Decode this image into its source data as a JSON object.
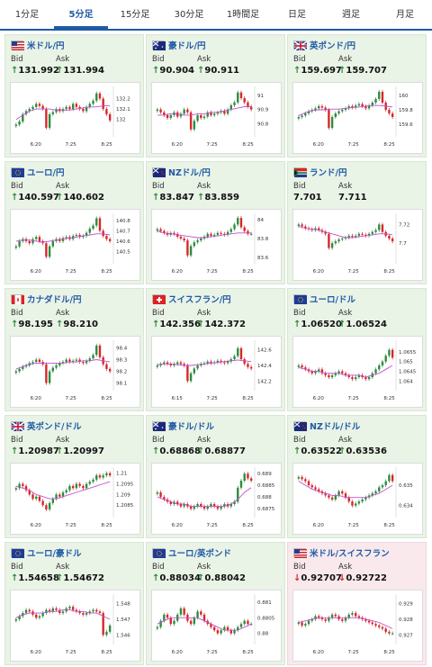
{
  "tabs": [
    "1分足",
    "5分足",
    "15分足",
    "30分足",
    "1時間足",
    "日足",
    "週足",
    "月足"
  ],
  "active_tab": 1,
  "labels": {
    "bid": "Bid",
    "ask": "Ask"
  },
  "colors": {
    "up": "#2e8b3e",
    "down": "#d62728",
    "accent": "#1f5aa6",
    "ma": "#c34fd0"
  },
  "cards": [
    {
      "pair": "米ドル/円",
      "flag": "us",
      "dir": "up",
      "bid": "131.992",
      "ask": "131.994",
      "yticks": [
        "132.2",
        "132.1",
        "132"
      ],
      "xticks": [
        "6:20",
        "7:25",
        "8:25"
      ],
      "yrange": [
        131.85,
        132.3
      ],
      "closes": [
        131.95,
        131.98,
        132.05,
        132.08,
        132.1,
        132.12,
        132.15,
        132.13,
        132.1,
        131.92,
        132.05,
        132.07,
        132.1,
        132.08,
        132.1,
        132.12,
        132.1,
        132.15,
        132.12,
        132.1,
        132.08,
        132.12,
        132.15,
        132.18,
        132.25,
        132.2,
        132.1,
        132.05,
        131.99
      ],
      "ma": [
        132.0,
        132.04,
        132.08,
        132.1,
        132.1,
        132.1,
        132.09,
        132.09,
        132.09,
        132.1,
        132.11,
        132.12,
        132.12,
        132.13,
        132.13
      ]
    },
    {
      "pair": "豪ドル/円",
      "flag": "au",
      "dir": "up",
      "bid": "90.904",
      "ask": "90.911",
      "yticks": [
        "91",
        "90.9",
        "90.8"
      ],
      "xticks": [
        "6:20",
        "7:25",
        "8:25"
      ],
      "yrange": [
        90.72,
        91.05
      ],
      "closes": [
        90.9,
        90.88,
        90.86,
        90.84,
        90.86,
        90.88,
        90.85,
        90.87,
        90.9,
        90.88,
        90.76,
        90.82,
        90.86,
        90.84,
        90.85,
        90.88,
        90.86,
        90.87,
        90.88,
        90.89,
        90.87,
        90.9,
        90.93,
        90.95,
        91.02,
        90.98,
        90.95,
        90.92,
        90.9
      ],
      "ma": [
        90.86,
        90.86,
        90.87,
        90.87,
        90.86,
        90.86,
        90.87,
        90.87,
        90.88,
        90.88,
        90.89,
        90.9,
        90.91,
        90.92,
        90.92
      ]
    },
    {
      "pair": "英ポンド/円",
      "flag": "gb",
      "dir": "up",
      "bid": "159.697",
      "ask": "159.707",
      "yticks": [
        "160",
        "159.8",
        "159.6"
      ],
      "xticks": [
        "6:20",
        "7:25",
        "8:25"
      ],
      "yrange": [
        159.45,
        160.1
      ],
      "closes": [
        159.7,
        159.72,
        159.75,
        159.78,
        159.8,
        159.82,
        159.85,
        159.83,
        159.8,
        159.55,
        159.7,
        159.75,
        159.78,
        159.8,
        159.82,
        159.85,
        159.83,
        159.86,
        159.88,
        159.85,
        159.82,
        159.86,
        159.9,
        159.95,
        160.05,
        159.9,
        159.8,
        159.75,
        159.7
      ],
      "ma": [
        159.72,
        159.76,
        159.79,
        159.8,
        159.8,
        159.81,
        159.81,
        159.82,
        159.83,
        159.84,
        159.85,
        159.86,
        159.86,
        159.85,
        159.84
      ]
    },
    {
      "pair": "ユーロ/円",
      "flag": "eu",
      "dir": "up",
      "bid": "140.597",
      "ask": "140.602",
      "yticks": [
        "140.8",
        "140.7",
        "140.6",
        "140.5"
      ],
      "xticks": [
        "6:20",
        "7:25",
        "8:25"
      ],
      "yrange": [
        140.4,
        140.85
      ],
      "closes": [
        140.55,
        140.6,
        140.62,
        140.6,
        140.58,
        140.62,
        140.64,
        140.6,
        140.58,
        140.45,
        140.55,
        140.6,
        140.62,
        140.6,
        140.63,
        140.64,
        140.62,
        140.65,
        140.66,
        140.64,
        140.65,
        140.68,
        140.72,
        140.75,
        140.82,
        140.7,
        140.65,
        140.62,
        140.6
      ],
      "ma": [
        140.6,
        140.61,
        140.61,
        140.6,
        140.59,
        140.6,
        140.61,
        140.62,
        140.63,
        140.64,
        140.65,
        140.66,
        140.67,
        140.67,
        140.66
      ]
    },
    {
      "pair": "NZドル/円",
      "flag": "nz",
      "dir": "up",
      "bid": "83.847",
      "ask": "83.859",
      "yticks": [
        "84",
        "83.8",
        "83.6"
      ],
      "xticks": [
        "6:20",
        "7:25",
        "8:25"
      ],
      "yrange": [
        83.55,
        84.05
      ],
      "closes": [
        83.9,
        83.88,
        83.86,
        83.84,
        83.86,
        83.85,
        83.82,
        83.8,
        83.78,
        83.62,
        83.72,
        83.76,
        83.78,
        83.8,
        83.82,
        83.85,
        83.83,
        83.84,
        83.86,
        83.85,
        83.84,
        83.87,
        83.9,
        83.95,
        84.02,
        83.92,
        83.88,
        83.85,
        83.85
      ],
      "ma": [
        83.88,
        83.86,
        83.85,
        83.84,
        83.83,
        83.82,
        83.81,
        83.81,
        83.82,
        83.83,
        83.84,
        83.85,
        83.86,
        83.86,
        83.86
      ]
    },
    {
      "pair": "ランド/円",
      "flag": "za",
      "dir": "none",
      "bid": "7.701",
      "ask": "7.711",
      "yticks": [
        "7.72",
        "7.7"
      ],
      "xticks": [
        "6:20",
        "7:25",
        "8:25"
      ],
      "yrange": [
        7.68,
        7.73
      ],
      "closes": [
        7.72,
        7.718,
        7.716,
        7.715,
        7.714,
        7.716,
        7.714,
        7.712,
        7.71,
        7.695,
        7.7,
        7.702,
        7.704,
        7.705,
        7.706,
        7.708,
        7.707,
        7.708,
        7.71,
        7.709,
        7.708,
        7.71,
        7.712,
        7.714,
        7.72,
        7.712,
        7.708,
        7.705,
        7.702
      ],
      "ma": [
        7.718,
        7.716,
        7.715,
        7.714,
        7.712,
        7.71,
        7.708,
        7.706,
        7.706,
        7.707,
        7.708,
        7.709,
        7.71,
        7.71,
        7.709
      ]
    },
    {
      "pair": "カナダドル/円",
      "flag": "ca",
      "dir": "up",
      "bid": "98.195",
      "ask": "98.210",
      "yticks": [
        "98.4",
        "98.3",
        "98.2",
        "98.1"
      ],
      "xticks": [
        "6:20",
        "7:25",
        "8:25"
      ],
      "yrange": [
        98.05,
        98.45
      ],
      "closes": [
        98.2,
        98.22,
        98.24,
        98.25,
        98.27,
        98.28,
        98.3,
        98.28,
        98.26,
        98.1,
        98.2,
        98.23,
        98.25,
        98.27,
        98.28,
        98.3,
        98.28,
        98.29,
        98.3,
        98.28,
        98.27,
        98.29,
        98.31,
        98.34,
        98.42,
        98.32,
        98.26,
        98.22,
        98.2
      ],
      "ma": [
        98.22,
        98.24,
        98.26,
        98.27,
        98.27,
        98.27,
        98.27,
        98.27,
        98.28,
        98.28,
        98.29,
        98.29,
        98.3,
        98.29,
        98.28
      ]
    },
    {
      "pair": "スイスフラン/円",
      "flag": "ch",
      "dir": "up",
      "bid": "142.356",
      "ask": "142.372",
      "yticks": [
        "142.6",
        "142.4",
        "142.2"
      ],
      "xticks": [
        "6:15",
        "7:25",
        "8:25"
      ],
      "yrange": [
        142.1,
        142.7
      ],
      "closes": [
        142.4,
        142.42,
        142.44,
        142.42,
        142.4,
        142.42,
        142.44,
        142.42,
        142.4,
        142.2,
        142.3,
        142.36,
        142.4,
        142.42,
        142.43,
        142.45,
        142.43,
        142.44,
        142.46,
        142.44,
        142.43,
        142.45,
        142.48,
        142.52,
        142.62,
        142.48,
        142.42,
        142.38,
        142.36
      ],
      "ma": [
        142.41,
        142.42,
        142.42,
        142.41,
        142.4,
        142.4,
        142.41,
        142.42,
        142.43,
        142.44,
        142.45,
        142.46,
        142.47,
        142.46,
        142.45
      ]
    },
    {
      "pair": "ユーロ/ドル",
      "flag": "eu",
      "dir": "up",
      "bid": "1.06520",
      "ask": "1.06524",
      "yticks": [
        "1.0655",
        "1.065",
        "1.0645",
        "1.064"
      ],
      "xticks": [
        "6:20",
        "7:25",
        "8:25"
      ],
      "yrange": [
        1.0636,
        1.066
      ],
      "closes": [
        1.0648,
        1.0647,
        1.0646,
        1.0645,
        1.0644,
        1.0645,
        1.0646,
        1.0644,
        1.0643,
        1.0642,
        1.0643,
        1.0644,
        1.0645,
        1.0644,
        1.0643,
        1.0642,
        1.0641,
        1.0642,
        1.0643,
        1.0642,
        1.0641,
        1.0642,
        1.0644,
        1.0646,
        1.0648,
        1.065,
        1.0653,
        1.0656,
        1.0652
      ],
      "ma": [
        1.0647,
        1.0646,
        1.0645,
        1.0645,
        1.0644,
        1.0644,
        1.0644,
        1.0643,
        1.0643,
        1.0643,
        1.0642,
        1.0643,
        1.0644,
        1.0646,
        1.0648
      ]
    },
    {
      "pair": "英ポンド/ドル",
      "flag": "gb",
      "dir": "up",
      "bid": "1.20987",
      "ask": "1.20997",
      "yticks": [
        "1.21",
        "1.2095",
        "1.209",
        "1.2085"
      ],
      "xticks": [
        "6:20",
        "7:25",
        "8:25"
      ],
      "yrange": [
        1.208,
        1.2102
      ],
      "closes": [
        1.2093,
        1.2095,
        1.2094,
        1.2092,
        1.209,
        1.2088,
        1.2089,
        1.2087,
        1.2085,
        1.2083,
        1.2086,
        1.2088,
        1.209,
        1.2089,
        1.2091,
        1.2092,
        1.2094,
        1.2093,
        1.2095,
        1.2094,
        1.2093,
        1.2095,
        1.2096,
        1.2097,
        1.2099,
        1.2098,
        1.2099,
        1.21,
        1.2099
      ],
      "ma": [
        1.2094,
        1.2093,
        1.2092,
        1.209,
        1.2089,
        1.2088,
        1.2088,
        1.2089,
        1.209,
        1.2091,
        1.2092,
        1.2093,
        1.2094,
        1.2095,
        1.2096
      ]
    },
    {
      "pair": "豪ドル/ドル",
      "flag": "au",
      "dir": "up",
      "bid": "0.68868",
      "ask": "0.68877",
      "yticks": [
        "0.689",
        "0.6885",
        "0.688",
        "0.6875"
      ],
      "xticks": [
        "6:20",
        "7:25",
        "8:25"
      ],
      "yrange": [
        0.6872,
        0.6892
      ],
      "closes": [
        0.6882,
        0.688,
        0.6879,
        0.6878,
        0.6877,
        0.6878,
        0.6877,
        0.6876,
        0.6877,
        0.6876,
        0.6875,
        0.6876,
        0.6877,
        0.6876,
        0.6875,
        0.6876,
        0.6877,
        0.6876,
        0.6875,
        0.6876,
        0.6877,
        0.6876,
        0.6877,
        0.6878,
        0.6884,
        0.6887,
        0.689,
        0.6888,
        0.6887
      ],
      "ma": [
        0.688,
        0.6879,
        0.6878,
        0.6877,
        0.6877,
        0.6876,
        0.6876,
        0.6876,
        0.6876,
        0.6876,
        0.6876,
        0.6877,
        0.6879,
        0.6882,
        0.6884
      ]
    },
    {
      "pair": "NZドル/ドル",
      "flag": "nz",
      "dir": "up",
      "bid": "0.63522",
      "ask": "0.63536",
      "yticks": [
        "0.635",
        "0.634"
      ],
      "xticks": [
        "6:20",
        "7:25",
        "8:25"
      ],
      "yrange": [
        0.6335,
        0.6358
      ],
      "closes": [
        0.6354,
        0.6353,
        0.6352,
        0.635,
        0.6349,
        0.6348,
        0.6347,
        0.6346,
        0.6345,
        0.6344,
        0.6343,
        0.6345,
        0.6347,
        0.6346,
        0.6344,
        0.6342,
        0.634,
        0.6341,
        0.6342,
        0.6343,
        0.6344,
        0.6345,
        0.6346,
        0.6347,
        0.6349,
        0.635,
        0.6352,
        0.6355,
        0.6352
      ],
      "ma": [
        0.6352,
        0.635,
        0.6348,
        0.6347,
        0.6346,
        0.6345,
        0.6345,
        0.6344,
        0.6344,
        0.6344,
        0.6344,
        0.6345,
        0.6346,
        0.6348,
        0.635
      ]
    },
    {
      "pair": "ユーロ/豪ドル",
      "flag": "eu",
      "dir": "up",
      "bid": "1.54658",
      "ask": "1.54672",
      "yticks": [
        "1.548",
        "1.547",
        "1.546"
      ],
      "xticks": [
        "6:20",
        "7:25",
        "8:25"
      ],
      "yrange": [
        1.5455,
        1.5485
      ],
      "closes": [
        1.547,
        1.5472,
        1.5474,
        1.5476,
        1.5475,
        1.5473,
        1.5471,
        1.5472,
        1.5474,
        1.5476,
        1.5475,
        1.5477,
        1.5476,
        1.5474,
        1.5475,
        1.5477,
        1.5478,
        1.5476,
        1.5475,
        1.5474,
        1.5473,
        1.5474,
        1.5475,
        1.5476,
        1.5475,
        1.5474,
        1.546,
        1.5462,
        1.5466
      ],
      "ma": [
        1.5471,
        1.5473,
        1.5474,
        1.5474,
        1.5474,
        1.5475,
        1.5475,
        1.5476,
        1.5476,
        1.5475,
        1.5475,
        1.5474,
        1.5474,
        1.5472,
        1.547
      ]
    },
    {
      "pair": "ユーロ/英ポンド",
      "flag": "eu",
      "dir": "up",
      "bid": "0.88034",
      "ask": "0.88042",
      "yticks": [
        "0.881",
        "0.8805",
        "0.88"
      ],
      "xticks": [
        "6:20",
        "7:25",
        "8:25"
      ],
      "yrange": [
        0.8797,
        0.8812
      ],
      "closes": [
        0.8802,
        0.8804,
        0.8806,
        0.8805,
        0.8803,
        0.8804,
        0.8806,
        0.8808,
        0.8806,
        0.8804,
        0.8803,
        0.8805,
        0.8807,
        0.8806,
        0.8804,
        0.8803,
        0.8802,
        0.8801,
        0.88,
        0.8801,
        0.8802,
        0.8801,
        0.88,
        0.8801,
        0.8802,
        0.8803,
        0.8804,
        0.8803,
        0.8803
      ],
      "ma": [
        0.8803,
        0.8804,
        0.8805,
        0.8805,
        0.8805,
        0.8805,
        0.8805,
        0.8804,
        0.8803,
        0.8802,
        0.8801,
        0.8801,
        0.8801,
        0.8802,
        0.8803
      ]
    },
    {
      "pair": "米ドル/スイスフラン",
      "flag": "us",
      "dir": "down",
      "bid": "0.92707",
      "ask": "0.92722",
      "yticks": [
        "0.929",
        "0.928",
        "0.927"
      ],
      "xticks": [
        "6:20",
        "7:25",
        "8:25"
      ],
      "yrange": [
        0.9265,
        0.9295
      ],
      "closes": [
        0.9278,
        0.9276,
        0.9277,
        0.9279,
        0.928,
        0.9282,
        0.9281,
        0.928,
        0.9279,
        0.9281,
        0.9283,
        0.9282,
        0.928,
        0.9279,
        0.9281,
        0.9283,
        0.9284,
        0.9282,
        0.9281,
        0.928,
        0.9279,
        0.9278,
        0.9277,
        0.9276,
        0.9275,
        0.9274,
        0.9272,
        0.9271,
        0.9271
      ],
      "ma": [
        0.9278,
        0.9279,
        0.928,
        0.9281,
        0.9281,
        0.9281,
        0.9281,
        0.9281,
        0.9281,
        0.9281,
        0.928,
        0.9279,
        0.9278,
        0.9276,
        0.9274
      ]
    }
  ]
}
